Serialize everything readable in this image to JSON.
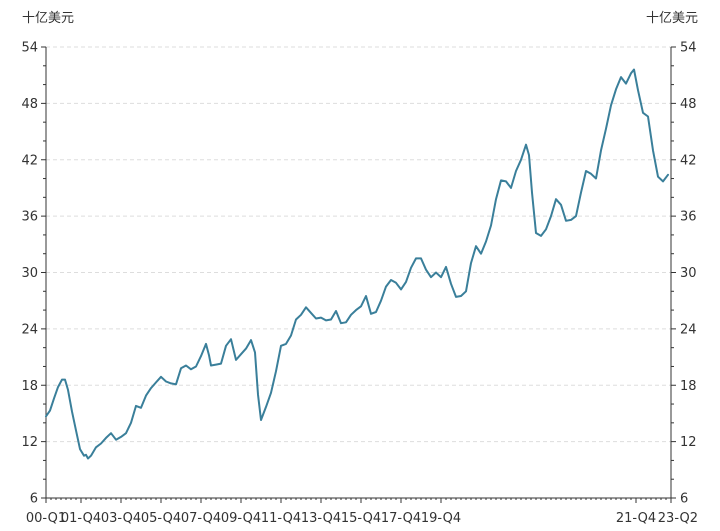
{
  "chart_data": {
    "type": "line",
    "title": "",
    "y_unit_left": "十亿美元",
    "y_unit_right": "十亿美元",
    "ylim": [
      6,
      54
    ],
    "y_ticks": [
      6,
      12,
      18,
      24,
      30,
      36,
      42,
      48,
      54
    ],
    "x_ticks": [
      "00-Q1",
      "01-Q4",
      "03-Q4",
      "05-Q4",
      "07-Q4",
      "09-Q4",
      "11-Q4",
      "13-Q4",
      "15-Q4",
      "17-Q4",
      "19-Q4",
      "21-Q4",
      "23-Q2"
    ],
    "grid": "horizontal-dashed",
    "line_color": "#3a7f9a",
    "series": [
      {
        "values": [
          [
            2000.0,
            14.7
          ],
          [
            2000.2,
            15.3
          ],
          [
            2000.4,
            16.6
          ],
          [
            2000.6,
            17.8
          ],
          [
            2000.8,
            18.6
          ],
          [
            2000.95,
            18.6
          ],
          [
            2001.1,
            17.5
          ],
          [
            2001.3,
            15.2
          ],
          [
            2001.5,
            13.2
          ],
          [
            2001.7,
            11.2
          ],
          [
            2001.9,
            10.5
          ],
          [
            2002.0,
            10.6
          ],
          [
            2002.1,
            10.2
          ],
          [
            2002.25,
            10.5
          ],
          [
            2002.5,
            11.4
          ],
          [
            2002.75,
            11.8
          ],
          [
            2003.0,
            12.4
          ],
          [
            2003.25,
            12.9
          ],
          [
            2003.5,
            12.2
          ],
          [
            2003.75,
            12.5
          ],
          [
            2004.0,
            12.9
          ],
          [
            2004.25,
            14.0
          ],
          [
            2004.5,
            15.8
          ],
          [
            2004.75,
            15.6
          ],
          [
            2005.0,
            16.9
          ],
          [
            2005.25,
            17.7
          ],
          [
            2005.5,
            18.3
          ],
          [
            2005.75,
            18.9
          ],
          [
            2006.0,
            18.4
          ],
          [
            2006.25,
            18.2
          ],
          [
            2006.5,
            18.1
          ],
          [
            2006.75,
            19.8
          ],
          [
            2007.0,
            20.1
          ],
          [
            2007.25,
            19.7
          ],
          [
            2007.5,
            20.0
          ],
          [
            2007.75,
            21.1
          ],
          [
            2008.0,
            22.4
          ],
          [
            2008.15,
            21.2
          ],
          [
            2008.25,
            20.1
          ],
          [
            2008.5,
            20.2
          ],
          [
            2008.75,
            20.3
          ],
          [
            2009.0,
            22.2
          ],
          [
            2009.25,
            22.9
          ],
          [
            2009.5,
            20.7
          ],
          [
            2009.75,
            21.3
          ],
          [
            2010.0,
            21.9
          ],
          [
            2010.25,
            22.8
          ],
          [
            2010.45,
            21.5
          ],
          [
            2010.6,
            17.0
          ],
          [
            2010.75,
            14.3
          ],
          [
            2011.0,
            15.7
          ],
          [
            2011.25,
            17.2
          ],
          [
            2011.5,
            19.5
          ],
          [
            2011.75,
            22.2
          ],
          [
            2012.0,
            22.4
          ],
          [
            2012.25,
            23.3
          ],
          [
            2012.5,
            25.0
          ],
          [
            2012.75,
            25.5
          ],
          [
            2013.0,
            26.3
          ],
          [
            2013.25,
            25.7
          ],
          [
            2013.5,
            25.1
          ],
          [
            2013.75,
            25.2
          ],
          [
            2014.0,
            24.9
          ],
          [
            2014.25,
            25.0
          ],
          [
            2014.5,
            25.9
          ],
          [
            2014.75,
            24.6
          ],
          [
            2015.0,
            24.7
          ],
          [
            2015.25,
            25.5
          ],
          [
            2015.5,
            26.0
          ],
          [
            2015.75,
            26.4
          ],
          [
            2016.0,
            27.5
          ],
          [
            2016.25,
            25.6
          ],
          [
            2016.5,
            25.8
          ],
          [
            2016.75,
            27.0
          ],
          [
            2017.0,
            28.5
          ],
          [
            2017.25,
            29.2
          ],
          [
            2017.5,
            28.9
          ],
          [
            2017.75,
            28.2
          ],
          [
            2018.0,
            29.0
          ],
          [
            2018.25,
            30.5
          ],
          [
            2018.5,
            31.5
          ],
          [
            2018.75,
            31.5
          ],
          [
            2019.0,
            30.3
          ],
          [
            2019.25,
            29.5
          ],
          [
            2019.5,
            30.0
          ],
          [
            2019.75,
            29.5
          ],
          [
            2020.0,
            30.6
          ],
          [
            2020.25,
            28.8
          ],
          [
            2020.5,
            27.4
          ],
          [
            2020.75,
            27.5
          ],
          [
            2021.0,
            28.0
          ],
          [
            2021.25,
            31.0
          ],
          [
            2021.5,
            32.8
          ],
          [
            2021.75,
            32.0
          ],
          [
            2022.0,
            33.3
          ],
          [
            2022.25,
            35.0
          ],
          [
            2022.5,
            37.8
          ],
          [
            2022.75,
            39.8
          ],
          [
            2023.0,
            39.7
          ],
          [
            2023.25,
            39.0
          ],
          [
            2023.5,
            40.8
          ],
          [
            2023.75,
            42.0
          ],
          [
            2024.0,
            43.6
          ],
          [
            2024.15,
            42.5
          ],
          [
            2024.3,
            38.5
          ],
          [
            2024.5,
            34.2
          ],
          [
            2024.75,
            33.9
          ],
          [
            2025.0,
            34.6
          ],
          [
            2025.25,
            36.0
          ],
          [
            2025.5,
            37.8
          ],
          [
            2025.75,
            37.2
          ],
          [
            2026.0,
            35.5
          ],
          [
            2026.25,
            35.6
          ],
          [
            2026.5,
            36.0
          ],
          [
            2026.75,
            38.5
          ],
          [
            2027.0,
            40.8
          ],
          [
            2027.25,
            40.5
          ],
          [
            2027.5,
            40.0
          ],
          [
            2027.75,
            43.0
          ],
          [
            2028.0,
            45.3
          ],
          [
            2028.25,
            47.8
          ],
          [
            2028.5,
            49.5
          ],
          [
            2028.75,
            50.8
          ],
          [
            2029.0,
            50.1
          ],
          [
            2029.25,
            51.2
          ],
          [
            2029.4,
            51.6
          ],
          [
            2029.6,
            49.4
          ],
          [
            2029.85,
            47.0
          ],
          [
            2030.1,
            46.6
          ],
          [
            2030.35,
            43.0
          ],
          [
            2030.6,
            40.2
          ],
          [
            2030.85,
            39.7
          ],
          [
            2031.1,
            40.4
          ]
        ]
      }
    ]
  }
}
